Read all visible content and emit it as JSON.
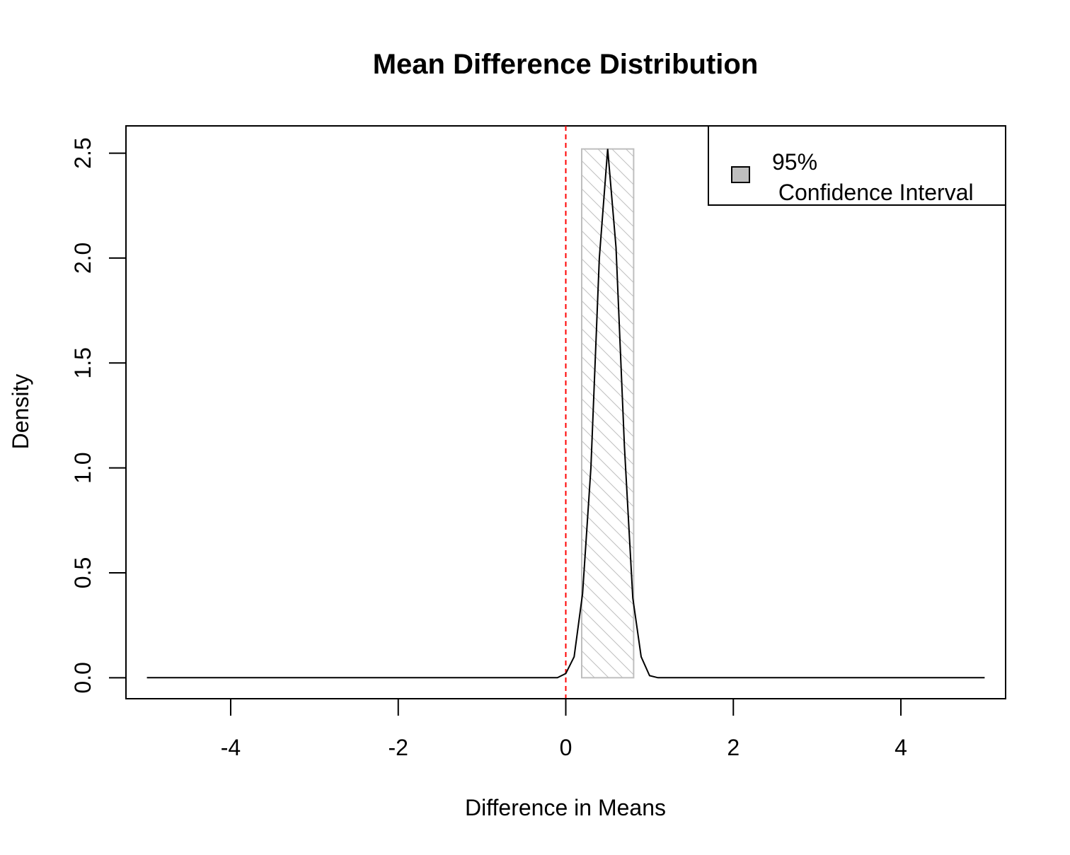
{
  "chart_data": {
    "type": "line",
    "title": "Mean Difference Distribution",
    "xlabel": "Difference in Means",
    "ylabel": "Density",
    "xlim": [
      -5.25,
      5.25
    ],
    "ylim": [
      -0.1,
      2.63
    ],
    "x_ticks": [
      -4,
      -2,
      0,
      2,
      4
    ],
    "x_tick_labels": [
      "-4",
      "-2",
      "0",
      "2",
      "4"
    ],
    "y_ticks": [
      0.0,
      0.5,
      1.0,
      1.5,
      2.0,
      2.5
    ],
    "y_tick_labels": [
      "0.0",
      "0.5",
      "1.0",
      "1.5",
      "2.0",
      "2.5"
    ],
    "series": [
      {
        "x": [
          -5.0,
          -0.1,
          0.0,
          0.1,
          0.2,
          0.3,
          0.4,
          0.5,
          0.6,
          0.7,
          0.8,
          0.9,
          1.0,
          1.1,
          5.0
        ],
        "y": [
          0.0,
          0.0,
          0.02,
          0.1,
          0.4,
          1.0,
          2.0,
          2.52,
          2.05,
          1.1,
          0.38,
          0.1,
          0.01,
          0.0,
          0.0
        ]
      }
    ],
    "confidence_interval": {
      "lower": 0.19,
      "upper": 0.81,
      "height": 2.52
    },
    "reference_line": {
      "x": 0,
      "color": "#ff0000",
      "style": "dashed"
    },
    "legend": {
      "position": "top-right",
      "line1": "95%",
      "line2": " Confidence Interval",
      "swatch_color": "#bebebe"
    },
    "colors": {
      "curve": "#000000",
      "ci_border": "#bebebe",
      "hatch": "#bebebe"
    },
    "grid": false
  }
}
